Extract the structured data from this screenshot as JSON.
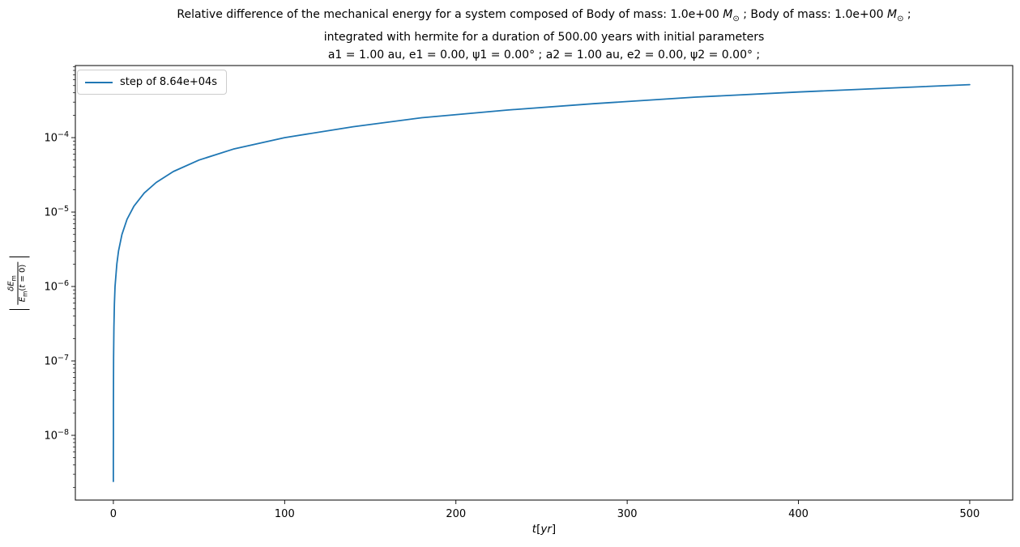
{
  "window": {
    "background": "#ffffff"
  },
  "colors": {
    "curve": "#1f77b4",
    "axis": "#000000",
    "legend_border": "#cccccc"
  },
  "title": {
    "line1": {
      "part1": "Relative difference of the mechanical energy for a system composed of Body of mass: 1.0e+00 ",
      "msun1": "M",
      "odot1": "⊙",
      "part2": " ; Body of mass: 1.0e+00 ",
      "msun2": "M",
      "odot2": "⊙",
      "part3": " ;"
    },
    "line2": "integrated with hermite for a duration of 500.00 years with initial parameters",
    "line3": "a1 = 1.00 au, e1 = 0.00, ψ1 = 0.00° ; a2 = 1.00 au, e2 = 0.00, ψ2 = 0.00° ;"
  },
  "legend": {
    "label": "step of 8.64e+04s"
  },
  "axes": {
    "xlabel": {
      "var": "t",
      "open": "[",
      "unit": "yr",
      "close": "]"
    },
    "ylabel": {
      "bar_left": "|",
      "num": "δE",
      "num_sub": "m",
      "den": "E",
      "den_sub": "m",
      "den_open": "(",
      "den_var": "t",
      "den_close": " = 0)",
      "bar_right": "|"
    }
  },
  "chart_data": {
    "type": "line",
    "title": "Relative difference of the mechanical energy for a system composed of Body of mass: 1.0e+00 M⊙ ; Body of mass: 1.0e+00 M⊙ ; integrated with hermite for a duration of 500.00 years with initial parameters a1 = 1.00 au, e1 = 0.00, ψ1 = 0.00° ; a2 = 1.00 au, e2 = 0.00, ψ2 = 0.00° ;",
    "xlabel": "t[yr]",
    "ylabel": "|δE_m/E_m(t=0)|",
    "yscale": "log",
    "grid": false,
    "legend_position": "upper left",
    "xlim": [
      -22.2,
      525.1
    ],
    "ylim": [
      1.35e-09,
      0.00093
    ],
    "x_ticks": [
      0,
      100,
      200,
      300,
      400,
      500
    ],
    "y_tick_exponents": [
      -4,
      -5,
      -6,
      -7,
      -8
    ],
    "series": [
      {
        "name": "step of 8.64e+04s",
        "color": "#1f77b4",
        "points": [
          [
            0.003,
            2.4e-09
          ],
          [
            0.006,
            5e-09
          ],
          [
            0.012,
            1e-08
          ],
          [
            0.03,
            2.6e-08
          ],
          [
            0.06,
            5.5e-08
          ],
          [
            0.12,
            1.1e-07
          ],
          [
            0.3,
            2.8e-07
          ],
          [
            0.6,
            5.8e-07
          ],
          [
            1,
            1e-06
          ],
          [
            2,
            2e-06
          ],
          [
            3,
            3e-06
          ],
          [
            5,
            5e-06
          ],
          [
            8,
            8e-06
          ],
          [
            12,
            1.2e-05
          ],
          [
            18,
            1.8e-05
          ],
          [
            25,
            2.5e-05
          ],
          [
            35,
            3.5e-05
          ],
          [
            50,
            5e-05
          ],
          [
            70,
            7e-05
          ],
          [
            100,
            0.0001
          ],
          [
            140,
            0.00014
          ],
          [
            180,
            0.000185
          ],
          [
            230,
            0.000235
          ],
          [
            280,
            0.000285
          ],
          [
            340,
            0.00035
          ],
          [
            400,
            0.00041
          ],
          [
            450,
            0.00046
          ],
          [
            500,
            0.000515
          ]
        ]
      }
    ]
  }
}
